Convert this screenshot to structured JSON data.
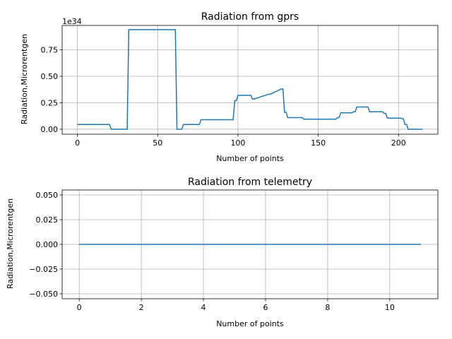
{
  "chart_data": [
    {
      "type": "line",
      "title": "Radiation from gprs",
      "xlabel": "Number of points",
      "ylabel": "Radiation,Microrentgen",
      "y_offset_label": "1e34",
      "xlim": [
        -9.5,
        224.5
      ],
      "ylim": [
        -0.047,
        0.98
      ],
      "x_ticks": [
        0,
        50,
        100,
        150,
        200
      ],
      "x_tick_labels": [
        "0",
        "50",
        "100",
        "150",
        "200"
      ],
      "y_ticks": [
        0.0,
        0.25,
        0.5,
        0.75
      ],
      "y_tick_labels": [
        "0.00",
        "0.25",
        "0.50",
        "0.75"
      ],
      "grid": true,
      "color": "#1f77b4",
      "x": [
        0,
        20,
        21,
        31,
        32,
        61,
        62,
        65,
        66,
        76,
        77,
        97,
        98,
        99,
        100,
        108,
        109,
        110,
        119,
        120,
        127,
        128,
        129,
        130,
        131,
        140,
        141,
        161,
        162,
        163,
        164,
        171,
        172,
        173,
        174,
        181,
        182,
        190,
        191,
        192,
        193,
        201,
        202,
        203,
        204,
        205,
        206,
        215
      ],
      "y": [
        0.045,
        0.045,
        0.0,
        0.0,
        0.94,
        0.94,
        0.0,
        0.0,
        0.045,
        0.045,
        0.09,
        0.09,
        0.27,
        0.27,
        0.32,
        0.32,
        0.285,
        0.285,
        0.33,
        0.33,
        0.38,
        0.38,
        0.16,
        0.16,
        0.11,
        0.11,
        0.095,
        0.095,
        0.11,
        0.11,
        0.155,
        0.155,
        0.165,
        0.165,
        0.21,
        0.21,
        0.165,
        0.165,
        0.15,
        0.15,
        0.105,
        0.105,
        0.1,
        0.1,
        0.045,
        0.045,
        0.0,
        0.0
      ]
    },
    {
      "type": "line",
      "title": "Radiation from telemetry",
      "xlabel": "Number of points",
      "ylabel": "Radiation,Microrentgen",
      "xlim": [
        -0.55,
        11.55
      ],
      "ylim": [
        -0.055,
        0.055
      ],
      "x_ticks": [
        0,
        2,
        4,
        6,
        8,
        10
      ],
      "x_tick_labels": [
        "0",
        "2",
        "4",
        "6",
        "8",
        "10"
      ],
      "y_ticks": [
        -0.05,
        -0.025,
        0.0,
        0.025,
        0.05
      ],
      "y_tick_labels": [
        "−0.050",
        "−0.025",
        "0.000",
        "0.025",
        "0.050"
      ],
      "grid": true,
      "color": "#1f77b4",
      "x": [
        0,
        1,
        2,
        3,
        4,
        5,
        6,
        7,
        8,
        9,
        10,
        11
      ],
      "y": [
        0,
        0,
        0,
        0,
        0,
        0,
        0,
        0,
        0,
        0,
        0,
        0
      ]
    }
  ]
}
